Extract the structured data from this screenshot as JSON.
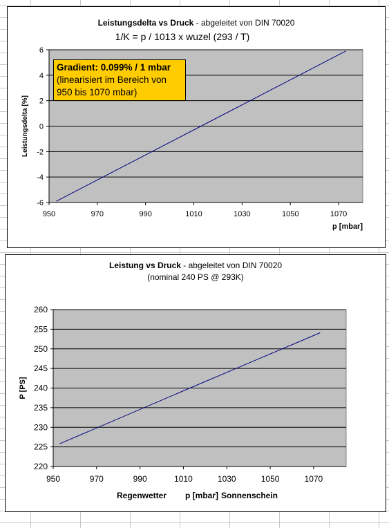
{
  "colors": {
    "plot_area": "#c0c0c0",
    "line": "#000080",
    "annotation_bg": "#ffcc00"
  },
  "chart_data": [
    {
      "type": "line",
      "title_bold": "Leistungsdelta vs Druck",
      "title_rest": " - abgeleitet von DIN 70020",
      "subtitle": "1/K = p / 1013 x wuzel (293 / T)",
      "xlabel": "p [mbar]",
      "ylabel": "Leistungsdelta [%]",
      "xlim": [
        950,
        1080
      ],
      "ylim": [
        -6,
        6
      ],
      "xticks": [
        950,
        970,
        990,
        1010,
        1030,
        1050,
        1070
      ],
      "yticks": [
        -6,
        -4,
        -2,
        0,
        2,
        4,
        6
      ],
      "grid": "horizontal",
      "legend": "none",
      "annotation": {
        "head": "Gradient: 0.099% / 1 mbar",
        "line1": "(linearisiert im Bereich von",
        "line2": "950 bis 1070 mbar)"
      },
      "series": [
        {
          "x": [
            953,
            1013,
            1073
          ],
          "values": [
            -5.9,
            0.0,
            5.9
          ]
        }
      ]
    },
    {
      "type": "line",
      "title_bold": "Leistung vs Druck",
      "title_rest": " - abgeleitet von DIN 70020",
      "subtitle": "(nominal 240 PS @ 293K)",
      "xlabel_left": "Regenwetter",
      "xlabel": "p [mbar]",
      "xlabel_right": "Sonnenschein",
      "ylabel": "P [PS]",
      "xlim": [
        950,
        1085
      ],
      "ylim": [
        220,
        260
      ],
      "xticks": [
        950,
        970,
        990,
        1010,
        1030,
        1050,
        1070
      ],
      "yticks": [
        220,
        225,
        230,
        235,
        240,
        245,
        250,
        255,
        260
      ],
      "grid": "horizontal",
      "legend": "none",
      "series": [
        {
          "x": [
            953,
            1013,
            1073
          ],
          "values": [
            225.8,
            240.0,
            254.1
          ]
        }
      ]
    }
  ]
}
